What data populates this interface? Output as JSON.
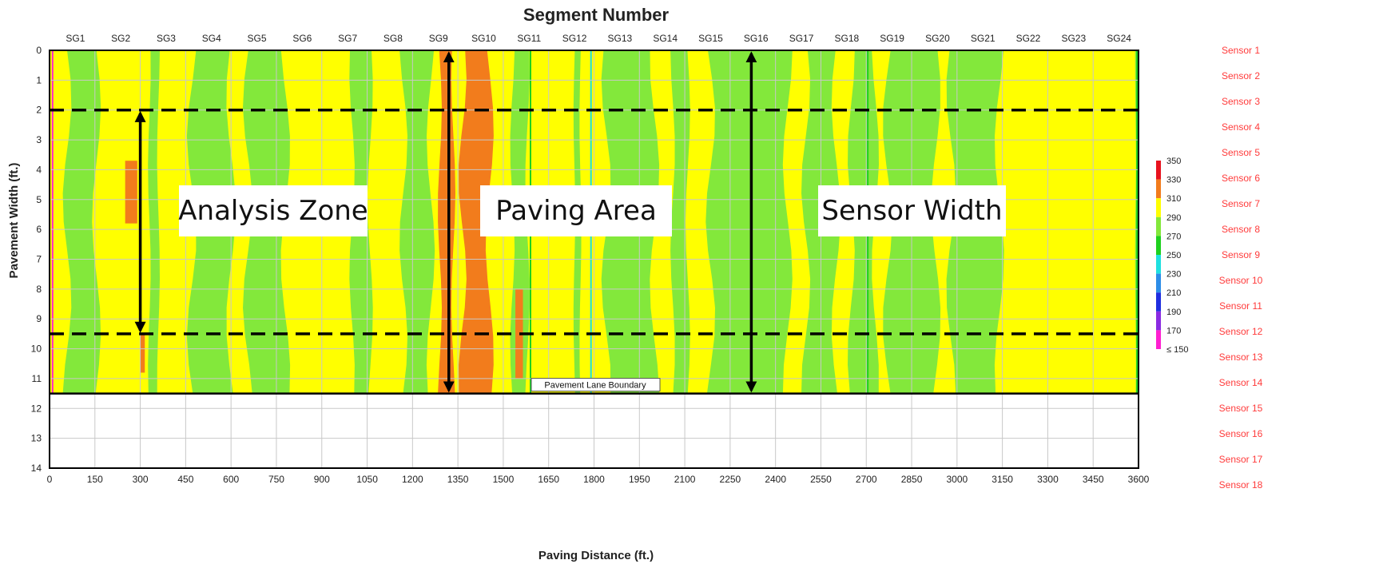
{
  "chart_data": {
    "type": "heatmap",
    "title": "Segment Number",
    "xlabel": "Paving Distance (ft.)",
    "ylabel": "Pavement Width (ft.)",
    "xlim": [
      0,
      3600
    ],
    "ylim": [
      0,
      14
    ],
    "y_inverted": true,
    "x_ticks": [
      0,
      150,
      300,
      450,
      600,
      750,
      900,
      1050,
      1200,
      1350,
      1500,
      1650,
      1800,
      1950,
      2100,
      2250,
      2400,
      2550,
      2700,
      2850,
      3000,
      3150,
      3300,
      3450,
      3600
    ],
    "y_ticks": [
      0,
      1,
      2,
      3,
      4,
      5,
      6,
      7,
      8,
      9,
      10,
      11,
      12,
      13,
      14
    ],
    "grid": true,
    "segments": [
      "SG1",
      "SG2",
      "SG3",
      "SG4",
      "SG5",
      "SG6",
      "SG7",
      "SG8",
      "SG9",
      "SG10",
      "SG11",
      "SG12",
      "SG13",
      "SG14",
      "SG15",
      "SG16",
      "SG17",
      "SG18",
      "SG19",
      "SG20",
      "SG21",
      "SG22",
      "SG23",
      "SG24"
    ],
    "sensors": [
      "Sensor 1",
      "Sensor 2",
      "Sensor 3",
      "Sensor 4",
      "Sensor 5",
      "Sensor 6",
      "Sensor 7",
      "Sensor 8",
      "Sensor 9",
      "Sensor 10",
      "Sensor 11",
      "Sensor 12",
      "Sensor 13",
      "Sensor 14",
      "Sensor 15",
      "Sensor 16",
      "Sensor 17",
      "Sensor 18"
    ],
    "lane_width": 11.5,
    "colorbar": {
      "ticks": [
        "350",
        "330",
        "310",
        "290",
        "270",
        "250",
        "230",
        "210",
        "190",
        "170",
        "≤ 150"
      ],
      "colors": [
        "#e8121e",
        "#f27c1c",
        "#ffff00",
        "#83e83b",
        "#1fd11f",
        "#1fe0e0",
        "#2c8de8",
        "#1f2ee0",
        "#8a2be2",
        "#ff1fd1"
      ]
    },
    "bands": [
      {
        "value": 290,
        "x_from": 58,
        "x_to": 155,
        "color": "#83e83b"
      },
      {
        "value": 290,
        "x_from": 330,
        "x_to": 360,
        "color": "#83e83b"
      },
      {
        "value": 290,
        "x_from": 470,
        "x_to": 600,
        "color": "#83e83b"
      },
      {
        "value": 290,
        "x_from": 655,
        "x_to": 780,
        "color": "#83e83b"
      },
      {
        "value": 290,
        "x_from": 1000,
        "x_to": 1060,
        "color": "#83e83b"
      },
      {
        "value": 290,
        "x_from": 1170,
        "x_to": 1260,
        "color": "#83e83b"
      },
      {
        "value": 330,
        "x_from": 1290,
        "x_to": 1335,
        "color": "#f27c1c"
      },
      {
        "value": 330,
        "x_from": 1365,
        "x_to": 1455,
        "color": "#f27c1c"
      },
      {
        "value": 290,
        "x_from": 1530,
        "x_to": 1580,
        "color": "#83e83b"
      },
      {
        "value": 290,
        "x_from": 1735,
        "x_to": 1755,
        "color": "#83e83b"
      },
      {
        "value": 290,
        "x_from": 1840,
        "x_to": 2000,
        "color": "#83e83b"
      },
      {
        "value": 290,
        "x_from": 2060,
        "x_to": 2110,
        "color": "#83e83b"
      },
      {
        "value": 290,
        "x_from": 2185,
        "x_to": 2440,
        "color": "#83e83b"
      },
      {
        "value": 290,
        "x_from": 2500,
        "x_to": 2600,
        "color": "#83e83b"
      },
      {
        "value": 290,
        "x_from": 2650,
        "x_to": 2730,
        "color": "#83e83b"
      },
      {
        "value": 290,
        "x_from": 2770,
        "x_to": 2930,
        "color": "#83e83b"
      },
      {
        "value": 290,
        "x_from": 2980,
        "x_to": 3140,
        "color": "#83e83b"
      },
      {
        "value": 290,
        "x_from": 3590,
        "x_to": 3600,
        "color": "#83e83b"
      }
    ],
    "spots": [
      {
        "value": 330,
        "x_from": 250,
        "x_to": 290,
        "y_from": 3.7,
        "y_to": 5.8
      },
      {
        "value": 330,
        "x_from": 300,
        "x_to": 315,
        "y_from": 9.5,
        "y_to": 10.8
      },
      {
        "value": 330,
        "x_from": 1540,
        "x_to": 1565,
        "y_from": 8.0,
        "y_to": 11.0
      }
    ],
    "reference_lines": [
      {
        "y": 2.0,
        "style": "dashed"
      },
      {
        "y": 9.5,
        "style": "dashed"
      }
    ],
    "annotations": [
      {
        "text": "Analysis Zone",
        "x": 300,
        "y_from": 2.0,
        "y_to": 9.5
      },
      {
        "text": "Paving Area",
        "x": 1320,
        "y_from": 0,
        "y_to": 11.5
      },
      {
        "text": "Sensor Width",
        "x": 2320,
        "y_from": 0,
        "y_to": 11.5
      }
    ],
    "boundary_label": "Pavement Lane Boundary"
  }
}
